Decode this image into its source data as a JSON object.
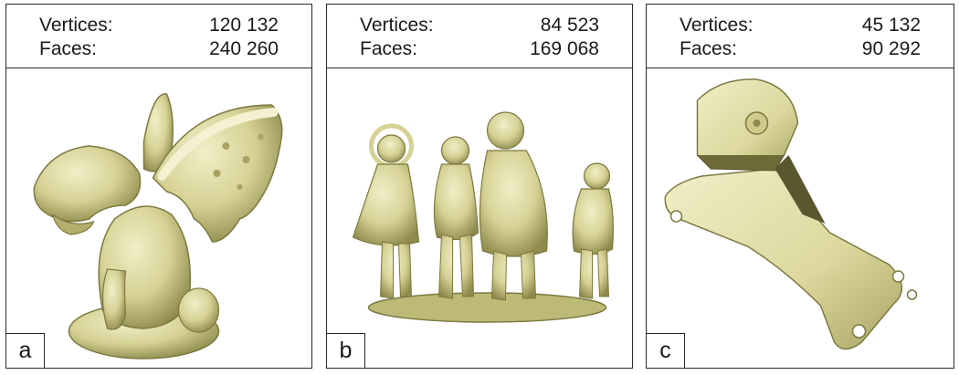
{
  "panels": [
    {
      "letter": "a",
      "vertices_label": "Vertices:",
      "vertices": "120 132",
      "faces_label": "Faces:",
      "faces": "240 260"
    },
    {
      "letter": "b",
      "vertices_label": "Vertices:",
      "vertices": "84 523",
      "faces_label": "Faces:",
      "faces": "169 068"
    },
    {
      "letter": "c",
      "vertices_label": "Vertices:",
      "vertices": "45 132",
      "faces_label": "Faces:",
      "faces": "90 292"
    }
  ],
  "colors": {
    "mesh_light": "#e8e5b4",
    "mesh_mid": "#cfcb8a",
    "mesh_dark": "#8e8a4c",
    "border": "#2a2a2a"
  },
  "icons": [
    "gargoyle-mesh-render",
    "children-statue-mesh-render",
    "mechanical-bracket-mesh-render"
  ]
}
